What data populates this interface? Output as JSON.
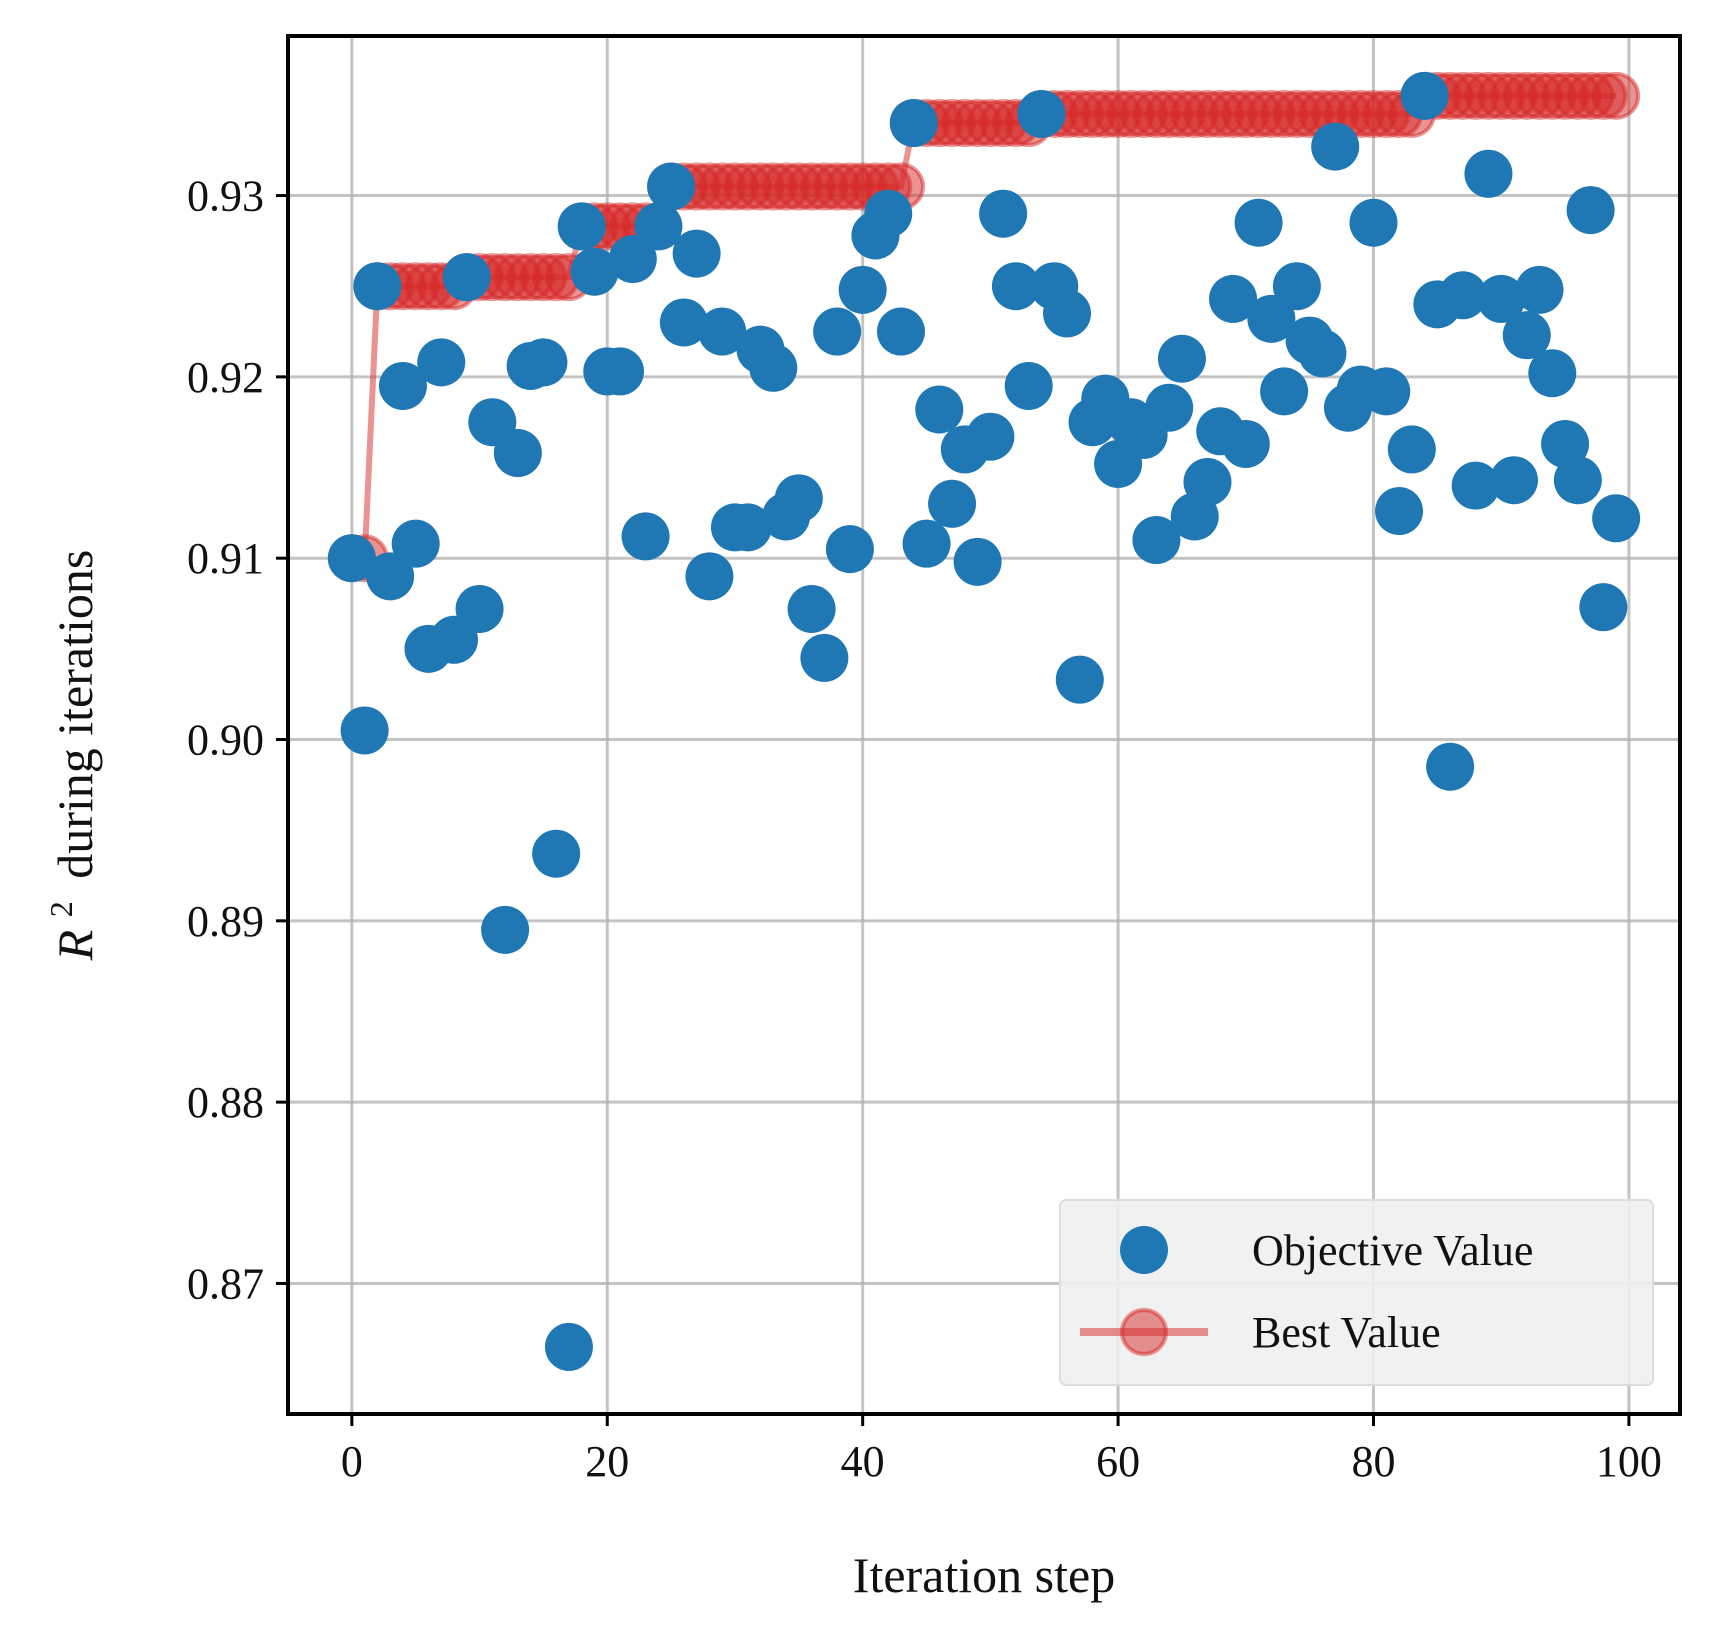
{
  "chart_data": {
    "type": "scatter",
    "xlabel": "Iteration step",
    "ylabel": "during iterations",
    "ylabel_math": {
      "symbol": "R",
      "superscript": "2"
    },
    "xlim": [
      -5,
      104
    ],
    "ylim": [
      0.8628,
      0.9388
    ],
    "xticks": [
      0,
      20,
      40,
      60,
      80,
      100
    ],
    "xtick_labels": [
      "0",
      "20",
      "40",
      "60",
      "80",
      "100"
    ],
    "yticks": [
      0.87,
      0.88,
      0.89,
      0.9,
      0.91,
      0.92,
      0.93
    ],
    "ytick_labels": [
      "0.87",
      "0.88",
      "0.89",
      "0.90",
      "0.91",
      "0.92",
      "0.93"
    ],
    "grid": true,
    "legend_position": "lower-right",
    "series": [
      {
        "name": "Objective Value",
        "kind": "scatter",
        "color": "#1f77b4",
        "x": [
          0,
          1,
          2,
          3,
          4,
          5,
          6,
          7,
          8,
          9,
          10,
          11,
          12,
          13,
          14,
          15,
          16,
          17,
          18,
          19,
          20,
          21,
          22,
          23,
          24,
          25,
          26,
          27,
          28,
          29,
          30,
          31,
          32,
          33,
          34,
          35,
          36,
          37,
          38,
          39,
          40,
          41,
          42,
          43,
          44,
          45,
          46,
          47,
          48,
          49,
          50,
          51,
          52,
          53,
          54,
          55,
          56,
          57,
          58,
          59,
          60,
          61,
          62,
          63,
          64,
          65,
          66,
          67,
          68,
          69,
          70,
          71,
          72,
          73,
          74,
          75,
          76,
          77,
          78,
          79,
          80,
          81,
          82,
          83,
          84,
          85,
          86,
          87,
          88,
          89,
          90,
          91,
          92,
          93,
          94,
          95,
          96,
          97,
          98,
          99
        ],
        "values": [
          0.91,
          0.9005,
          0.925,
          0.909,
          0.9195,
          0.9108,
          0.905,
          0.9208,
          0.9055,
          0.9255,
          0.9072,
          0.9175,
          0.8895,
          0.9158,
          0.9206,
          0.9208,
          0.8937,
          0.8665,
          0.9283,
          0.9258,
          0.9203,
          0.9203,
          0.9265,
          0.9112,
          0.9283,
          0.9305,
          0.923,
          0.9268,
          0.909,
          0.9225,
          0.9117,
          0.9117,
          0.9215,
          0.9205,
          0.9123,
          0.9133,
          0.9072,
          0.9045,
          0.9225,
          0.9105,
          0.9248,
          0.9278,
          0.929,
          0.9225,
          0.934,
          0.9108,
          0.9182,
          0.913,
          0.916,
          0.9098,
          0.9167,
          0.929,
          0.925,
          0.9195,
          0.9345,
          0.925,
          0.9235,
          0.9033,
          0.9175,
          0.9188,
          0.9152,
          0.9175,
          0.9168,
          0.911,
          0.9183,
          0.921,
          0.9123,
          0.9142,
          0.917,
          0.9243,
          0.9163,
          0.9285,
          0.9232,
          0.9192,
          0.925,
          0.922,
          0.9213,
          0.9327,
          0.9183,
          0.9193,
          0.9285,
          0.9192,
          0.9126,
          0.916,
          0.9355,
          0.924,
          0.8985,
          0.9245,
          0.914,
          0.9312,
          0.9243,
          0.9143,
          0.9223,
          0.9248,
          0.9202,
          0.9163,
          0.9143,
          0.9292,
          0.9073,
          0.9122
        ]
      },
      {
        "name": "Best Value",
        "kind": "line-marker",
        "color": "#d62728",
        "x": [
          0,
          1,
          2,
          3,
          4,
          5,
          6,
          7,
          8,
          9,
          10,
          11,
          12,
          13,
          14,
          15,
          16,
          17,
          18,
          19,
          20,
          21,
          22,
          23,
          24,
          25,
          26,
          27,
          28,
          29,
          30,
          31,
          32,
          33,
          34,
          35,
          36,
          37,
          38,
          39,
          40,
          41,
          42,
          43,
          44,
          45,
          46,
          47,
          48,
          49,
          50,
          51,
          52,
          53,
          54,
          55,
          56,
          57,
          58,
          59,
          60,
          61,
          62,
          63,
          64,
          65,
          66,
          67,
          68,
          69,
          70,
          71,
          72,
          73,
          74,
          75,
          76,
          77,
          78,
          79,
          80,
          81,
          82,
          83,
          84,
          85,
          86,
          87,
          88,
          89,
          90,
          91,
          92,
          93,
          94,
          95,
          96,
          97,
          98,
          99
        ],
        "values": [
          0.91,
          0.91,
          0.925,
          0.925,
          0.925,
          0.925,
          0.925,
          0.925,
          0.925,
          0.9255,
          0.9255,
          0.9255,
          0.9255,
          0.9255,
          0.9255,
          0.9255,
          0.9255,
          0.9255,
          0.9283,
          0.9283,
          0.9283,
          0.9283,
          0.9283,
          0.9283,
          0.9283,
          0.9305,
          0.9305,
          0.9305,
          0.9305,
          0.9305,
          0.9305,
          0.9305,
          0.9305,
          0.9305,
          0.9305,
          0.9305,
          0.9305,
          0.9305,
          0.9305,
          0.9305,
          0.9305,
          0.9305,
          0.9305,
          0.9305,
          0.934,
          0.934,
          0.934,
          0.934,
          0.934,
          0.934,
          0.934,
          0.934,
          0.934,
          0.934,
          0.9345,
          0.9345,
          0.9345,
          0.9345,
          0.9345,
          0.9345,
          0.9345,
          0.9345,
          0.9345,
          0.9345,
          0.9345,
          0.9345,
          0.9345,
          0.9345,
          0.9345,
          0.9345,
          0.9345,
          0.9345,
          0.9345,
          0.9345,
          0.9345,
          0.9345,
          0.9345,
          0.9345,
          0.9345,
          0.9345,
          0.9345,
          0.9345,
          0.9345,
          0.9345,
          0.9355,
          0.9355,
          0.9355,
          0.9355,
          0.9355,
          0.9355,
          0.9355,
          0.9355,
          0.9355,
          0.9355,
          0.9355,
          0.9355,
          0.9355,
          0.9355,
          0.9355,
          0.9355
        ]
      }
    ]
  }
}
